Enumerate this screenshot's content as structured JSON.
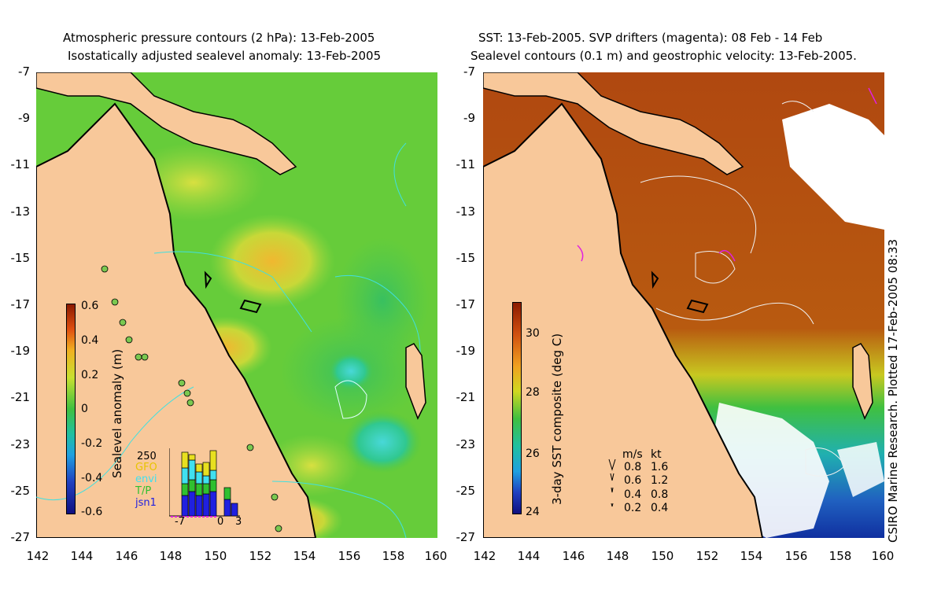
{
  "left_panel": {
    "title_line1": "Atmospheric pressure contours (2 hPa): 13-Feb-2005",
    "title_line2": "Isostatically adjusted sealevel anomaly: 13-Feb-2005",
    "colorbar_label": "Sealevel anomaly (m)",
    "colorbar_ticks": [
      "0.6",
      "0.4",
      "0.2",
      "0",
      "-0.2",
      "-0.4",
      "-0.6"
    ],
    "legend_count": "250",
    "legend_sources": [
      {
        "label": "GFO",
        "color": "#e8c400"
      },
      {
        "label": "envi",
        "color": "#40e0f0"
      },
      {
        "label": "T/P",
        "color": "#30c030"
      },
      {
        "label": "jsn1",
        "color": "#2020e0"
      }
    ],
    "hist_axis_labels": [
      "-7",
      "0",
      "3"
    ]
  },
  "right_panel": {
    "title_line1": "SST: 13-Feb-2005. SVP drifters (magenta): 08 Feb - 14 Feb",
    "title_line2": "Sealevel contours (0.1 m) and geostrophic velocity: 13-Feb-2005.",
    "colorbar_label": "3-day SST composite (deg C)",
    "colorbar_ticks": [
      "30",
      "28",
      "26",
      "24"
    ],
    "velocity_legend": {
      "header_ms": "m/s",
      "header_kt": "kt",
      "rows": [
        {
          "ms": "0.8",
          "kt": "1.6"
        },
        {
          "ms": "0.6",
          "kt": "1.2"
        },
        {
          "ms": "0.4",
          "kt": "0.8"
        },
        {
          "ms": "0.2",
          "kt": "0.4"
        }
      ]
    },
    "credit": "CSIRO Marine Research. Plotted 17-Feb-2005 08:33"
  },
  "axes": {
    "y_ticks": [
      "-7",
      "-9",
      "-11",
      "-13",
      "-15",
      "-17",
      "-19",
      "-21",
      "-23",
      "-25",
      "-27"
    ],
    "x_ticks": [
      "142",
      "144",
      "146",
      "148",
      "150",
      "152",
      "154",
      "156",
      "158",
      "160"
    ]
  },
  "colors": {
    "land": "#f8c89a",
    "coast": "#000000",
    "anomaly_mid": "#66cc33",
    "sst_warm": "#b85010"
  }
}
